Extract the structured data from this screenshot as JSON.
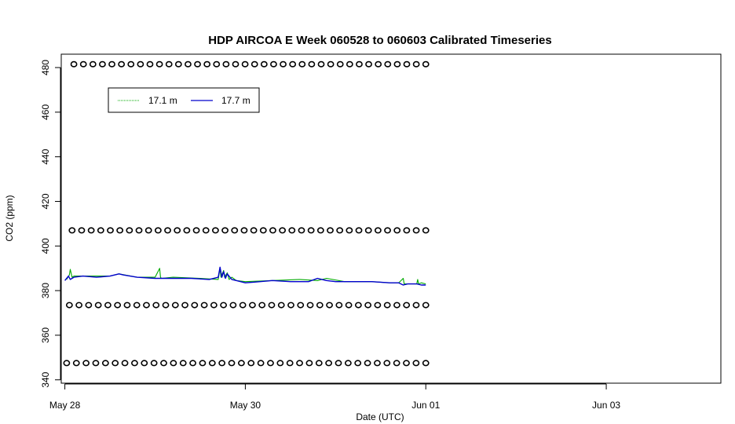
{
  "chart_data": {
    "type": "line",
    "title": "HDP AIRCOA E  Week 060528 to 060603  Calibrated Timeseries",
    "xlabel": "Date (UTC)",
    "ylabel": "CO2 (ppm)",
    "xlim": [
      -0.04,
      7.27
    ],
    "ylim": [
      338.5,
      486
    ],
    "x_ticks": [
      {
        "value": 0,
        "label": "May 28"
      },
      {
        "value": 2,
        "label": "May 30"
      },
      {
        "value": 4,
        "label": "Jun 01"
      },
      {
        "value": 6,
        "label": "Jun 03"
      }
    ],
    "y_ticks": [
      340,
      360,
      380,
      400,
      420,
      440,
      460,
      480
    ],
    "grid": false,
    "legend": {
      "placement": "top-left",
      "entries": [
        {
          "label": "17.1 m",
          "color": "#00aa00",
          "style": "dotted"
        },
        {
          "label": "17.7 m",
          "color": "#0000cc",
          "style": "solid"
        }
      ]
    },
    "series": [
      {
        "name": "17.1 m",
        "color": "#00aa00",
        "x": [
          0.02,
          0.05,
          0.06,
          0.08,
          0.1,
          0.3,
          0.5,
          0.6,
          0.8,
          1.0,
          1.05,
          1.06,
          1.07,
          1.2,
          1.5,
          1.7,
          1.72,
          1.73,
          1.76,
          1.77,
          1.8,
          1.82,
          1.85,
          1.9,
          2.0,
          2.3,
          2.6,
          2.8,
          2.9,
          3.1,
          3.4,
          3.6,
          3.7,
          3.75,
          3.76,
          3.8,
          3.9,
          3.91,
          3.92,
          3.95,
          4.0
        ],
        "y": [
          385.0,
          387.0,
          389.5,
          386.0,
          386.5,
          386.5,
          386.5,
          387.5,
          386.0,
          386.0,
          390.0,
          386.0,
          385.5,
          386.0,
          385.5,
          385.0,
          390.0,
          386.0,
          389.0,
          386.0,
          388.0,
          385.0,
          386.0,
          384.5,
          384.0,
          384.5,
          385.0,
          384.5,
          385.5,
          384.0,
          384.0,
          383.5,
          383.5,
          385.5,
          383.0,
          383.0,
          383.0,
          385.0,
          383.0,
          383.5,
          383.0
        ]
      },
      {
        "name": "17.7 m",
        "color": "#0000cc",
        "x": [
          0.0,
          0.02,
          0.04,
          0.06,
          0.1,
          0.2,
          0.35,
          0.5,
          0.6,
          0.65,
          0.8,
          1.0,
          1.2,
          1.4,
          1.6,
          1.7,
          1.72,
          1.74,
          1.76,
          1.78,
          1.8,
          1.85,
          1.9,
          2.0,
          2.1,
          2.3,
          2.5,
          2.7,
          2.8,
          2.85,
          2.9,
          3.0,
          3.2,
          3.4,
          3.6,
          3.7,
          3.75,
          3.8,
          3.9,
          3.95,
          4.0
        ],
        "y": [
          384.5,
          385.5,
          386.5,
          385.0,
          386.0,
          386.5,
          386.0,
          386.5,
          387.5,
          387.0,
          386.0,
          385.5,
          385.5,
          385.5,
          385.0,
          386.0,
          390.5,
          386.0,
          388.5,
          385.5,
          387.5,
          385.0,
          384.5,
          383.5,
          383.8,
          384.5,
          384.0,
          384.0,
          385.5,
          385.0,
          384.5,
          384.0,
          384.0,
          384.0,
          383.5,
          383.5,
          382.5,
          383.0,
          383.0,
          382.5,
          382.5
        ]
      }
    ],
    "marker_rows": {
      "marker": "open-circle",
      "color": "#000000",
      "x_start": 0.05,
      "x_end": 4.0,
      "count": 38,
      "rows": [
        {
          "y": 481.5,
          "x_start": 0.1
        },
        {
          "y": 407.0,
          "x_start": 0.08
        },
        {
          "y": 373.5,
          "x_start": 0.05
        },
        {
          "y": 347.5,
          "x_start": 0.02
        }
      ]
    }
  }
}
